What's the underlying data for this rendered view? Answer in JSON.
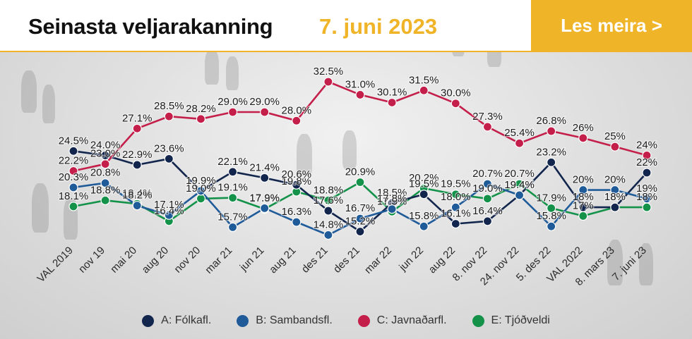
{
  "header": {
    "title": "Seinasta veljarakanning",
    "date": "7. juni 2023",
    "read_more_label": "Les meira >"
  },
  "colors": {
    "accent": "#f0b429",
    "A": "#12254d",
    "B": "#1f5a99",
    "C": "#c41e4a",
    "E": "#14924a"
  },
  "chart_data": {
    "type": "line",
    "categories": [
      "VAL 2019",
      "nov 19",
      "mai 20",
      "aug 20",
      "nov 20",
      "mar 21",
      "jun 21",
      "aug 21",
      "des 21",
      "des 21",
      "mar 22",
      "jun 22",
      "aug 22",
      "8. nov 22",
      "24. nov 22",
      "5. des 22",
      "VAL 2022",
      "8. mars 23",
      "7. juni 23"
    ],
    "ylim": [
      10,
      36
    ],
    "grid": false,
    "legend_position": "bottom",
    "series": [
      {
        "key": "A",
        "name": "A: Fólkafl.",
        "values": [
          24.5,
          24.0,
          22.9,
          23.6,
          19.9,
          22.1,
          21.4,
          20.6,
          17.6,
          15.2,
          18.5,
          19.5,
          16.1,
          16.4,
          19.4,
          23.2,
          18.0,
          18.0,
          22.0
        ],
        "labels": [
          "24.5%",
          "24.0%",
          "22.9%",
          "23.6%",
          "19.9%",
          "22.1%",
          "21.4%",
          "20.6%",
          "17.6%",
          "15.2%",
          "18.5%",
          "19.5%",
          "16.1%",
          "16.4%",
          "19.4%",
          "23.2%",
          "18%",
          "18%",
          "22%"
        ]
      },
      {
        "key": "B",
        "name": "B: Sambandsfl.",
        "values": [
          20.3,
          20.8,
          18.2,
          17.1,
          19.9,
          15.7,
          17.9,
          16.3,
          14.8,
          16.7,
          17.8,
          15.8,
          18.0,
          20.7,
          19.4,
          15.8,
          20.0,
          20.0,
          19.0
        ],
        "labels": [
          "20.3%",
          "20.8%",
          "18.2%",
          "17.1%",
          "19.9%",
          "15.7%",
          "17.9%",
          "16.3%",
          "14.8%",
          "16.7%",
          "17.8%",
          "15.8%",
          "18.0%",
          "20.7%",
          "19.4%",
          "15.8%",
          "20%",
          "20%",
          "19%"
        ]
      },
      {
        "key": "C",
        "name": "C: Javnaðarfl.",
        "values": [
          22.2,
          23.0,
          27.1,
          28.5,
          28.2,
          29.0,
          29.0,
          28.0,
          32.5,
          31.0,
          30.1,
          31.5,
          30.0,
          27.3,
          25.4,
          26.8,
          26.0,
          25.0,
          24.0
        ],
        "labels": [
          "22.2%",
          "23.0%",
          "27.1%",
          "28.5%",
          "28.2%",
          "29.0%",
          "29.0%",
          "28.0%",
          "32.5%",
          "31.0%",
          "30.1%",
          "31.5%",
          "30.0%",
          "27.3%",
          "25.4%",
          "26.8%",
          "26%",
          "25%",
          "24%"
        ]
      },
      {
        "key": "E",
        "name": "E: Tjóðveldi",
        "values": [
          18.1,
          18.8,
          18.4,
          16.4,
          19.0,
          19.1,
          17.8,
          19.8,
          18.8,
          20.9,
          17.5,
          20.2,
          19.5,
          19.0,
          20.7,
          17.9,
          17.0,
          18.0,
          18.0
        ],
        "labels": [
          "18.1%",
          "18.8%",
          "18.4%",
          "16.4%",
          "19.0%",
          "19.1%",
          "17.8%",
          "19.8%",
          "18.8%",
          "20.9%",
          "17.5%",
          "20.2%",
          "19.5%",
          "19.0%",
          "20.7%",
          "17.9%",
          "17%",
          "18%",
          "18%"
        ]
      }
    ]
  }
}
